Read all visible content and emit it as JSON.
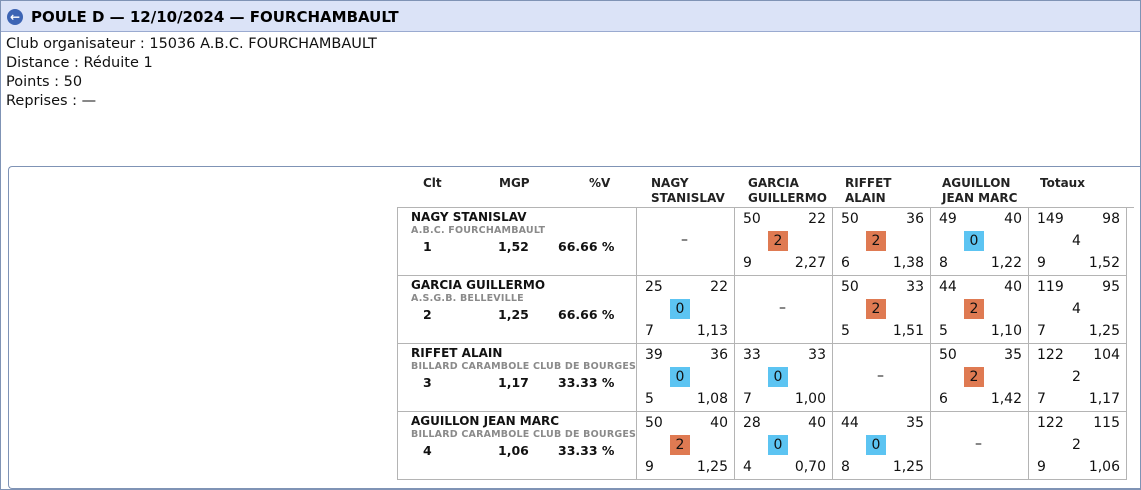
{
  "header": {
    "back_icon": "arrow-left-icon",
    "title": "POULE D — 12/10/2024 — FOURCHAMBAULT"
  },
  "info": {
    "club": "Club organisateur : 15036 A.B.C. FOURCHAMBAULT",
    "distance": "Distance : Réduite 1",
    "points": "Points : 50",
    "reprises": "Reprises : —"
  },
  "columns": {
    "clt": "Clt",
    "mgp": "MGP",
    "pct": "%V",
    "opponents": [
      {
        "line1": "NAGY",
        "line2": "STANISLAV"
      },
      {
        "line1": "GARCIA",
        "line2": "GUILLERMO"
      },
      {
        "line1": "RIFFET",
        "line2": "ALAIN"
      },
      {
        "line1": "AGUILLON",
        "line2": "JEAN MARC"
      }
    ],
    "totals": "Totaux"
  },
  "colors": {
    "win": "#df7a52",
    "loss": "#5cc4f2"
  },
  "players": [
    {
      "name": "NAGY STANISLAV",
      "club": "A.B.C. FOURCHAMBAULT",
      "clt": "1",
      "mgp": "1,52",
      "pct": "66.66 %",
      "results": [
        null,
        {
          "points": "50",
          "opp": "22",
          "match_pts": "2",
          "result": "win",
          "reprises": "9",
          "avg": "2,27"
        },
        {
          "points": "50",
          "opp": "36",
          "match_pts": "2",
          "result": "win",
          "reprises": "6",
          "avg": "1,38"
        },
        {
          "points": "49",
          "opp": "40",
          "match_pts": "0",
          "result": "loss",
          "reprises": "8",
          "avg": "1,22"
        }
      ],
      "totals": {
        "points": "149",
        "opp": "98",
        "match_pts": "4",
        "reprises": "9",
        "avg": "1,52"
      }
    },
    {
      "name": "GARCIA GUILLERMO",
      "club": "A.S.G.B. BELLEVILLE",
      "clt": "2",
      "mgp": "1,25",
      "pct": "66.66 %",
      "results": [
        {
          "points": "25",
          "opp": "22",
          "match_pts": "0",
          "result": "loss",
          "reprises": "7",
          "avg": "1,13"
        },
        null,
        {
          "points": "50",
          "opp": "33",
          "match_pts": "2",
          "result": "win",
          "reprises": "5",
          "avg": "1,51"
        },
        {
          "points": "44",
          "opp": "40",
          "match_pts": "2",
          "result": "win",
          "reprises": "5",
          "avg": "1,10"
        }
      ],
      "totals": {
        "points": "119",
        "opp": "95",
        "match_pts": "4",
        "reprises": "7",
        "avg": "1,25"
      }
    },
    {
      "name": "RIFFET ALAIN",
      "club": "BILLARD CARAMBOLE CLUB DE BOURGES",
      "clt": "3",
      "mgp": "1,17",
      "pct": "33.33 %",
      "results": [
        {
          "points": "39",
          "opp": "36",
          "match_pts": "0",
          "result": "loss",
          "reprises": "5",
          "avg": "1,08"
        },
        {
          "points": "33",
          "opp": "33",
          "match_pts": "0",
          "result": "loss",
          "reprises": "7",
          "avg": "1,00"
        },
        null,
        {
          "points": "50",
          "opp": "35",
          "match_pts": "2",
          "result": "win",
          "reprises": "6",
          "avg": "1,42"
        }
      ],
      "totals": {
        "points": "122",
        "opp": "104",
        "match_pts": "2",
        "reprises": "7",
        "avg": "1,17"
      }
    },
    {
      "name": "AGUILLON JEAN MARC",
      "club": "BILLARD CARAMBOLE CLUB DE BOURGES",
      "clt": "4",
      "mgp": "1,06",
      "pct": "33.33 %",
      "results": [
        {
          "points": "50",
          "opp": "40",
          "match_pts": "2",
          "result": "win",
          "reprises": "9",
          "avg": "1,25"
        },
        {
          "points": "28",
          "opp": "40",
          "match_pts": "0",
          "result": "loss",
          "reprises": "4",
          "avg": "0,70"
        },
        {
          "points": "44",
          "opp": "35",
          "match_pts": "0",
          "result": "loss",
          "reprises": "8",
          "avg": "1,25"
        },
        null
      ],
      "totals": {
        "points": "122",
        "opp": "115",
        "match_pts": "2",
        "reprises": "9",
        "avg": "1,06"
      }
    }
  ],
  "self_marker": "–"
}
